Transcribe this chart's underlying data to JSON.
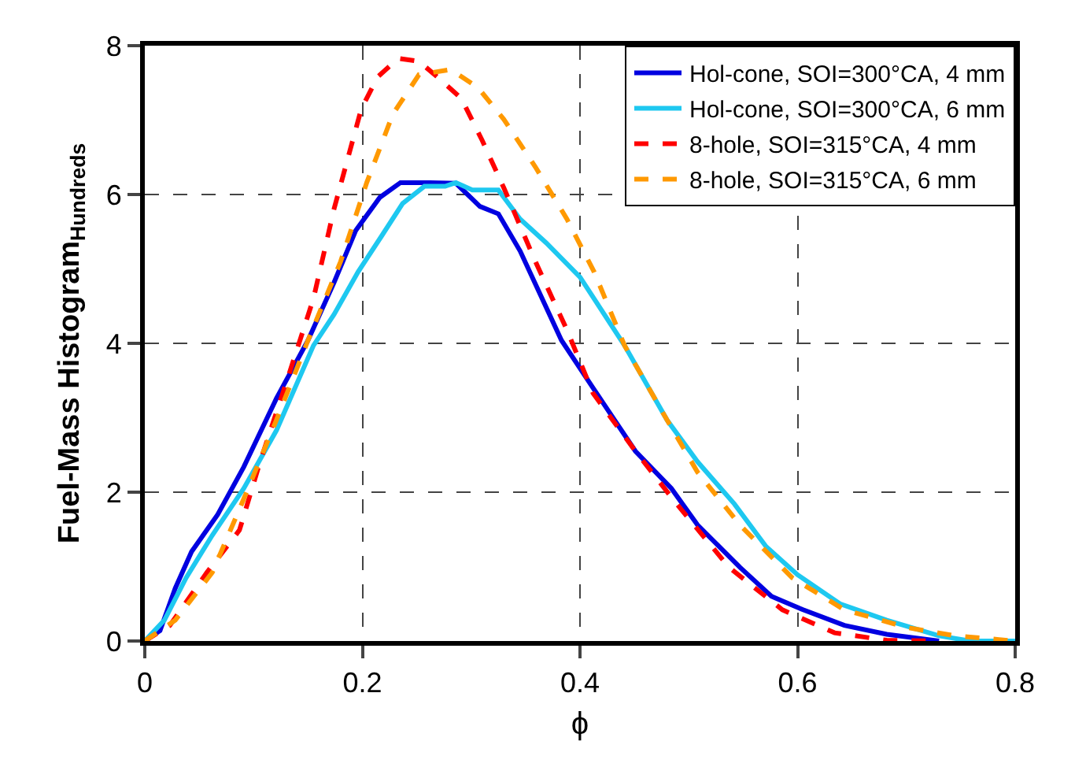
{
  "chart_data": {
    "type": "line",
    "xlabel": "ϕ",
    "ylabel": "Fuel-Mass Histogram$_{Hundreds}$",
    "xlim": [
      0,
      0.8
    ],
    "xticks": [
      0,
      0.2,
      0.4,
      0.6,
      0.8
    ],
    "ylim": [
      0,
      8
    ],
    "yticks": [
      0,
      2,
      4,
      6,
      8
    ],
    "grid": true,
    "legend": "top right",
    "marker": "none",
    "series": [
      {
        "name": "Hol-cone, SOI=300°CA, 4 mm",
        "color": "#0000e0",
        "line_style": "solid",
        "x": [
          0,
          0.014,
          0.028,
          0.043,
          0.067,
          0.091,
          0.121,
          0.15,
          0.174,
          0.194,
          0.216,
          0.235,
          0.262,
          0.286,
          0.308,
          0.325,
          0.345,
          0.383,
          0.412,
          0.451,
          0.484,
          0.508,
          0.547,
          0.576,
          0.605,
          0.643,
          0.682,
          0.73
        ],
        "values": [
          0,
          0.14,
          0.71,
          1.2,
          1.7,
          2.34,
          3.26,
          4.04,
          4.82,
          5.52,
          5.96,
          6.16,
          6.16,
          6.15,
          5.84,
          5.74,
          5.24,
          4.04,
          3.4,
          2.55,
          2.05,
          1.56,
          0.99,
          0.6,
          0.42,
          0.21,
          0.09,
          0
        ]
      },
      {
        "name": "Hol-cone, SOI=300°CA, 6 mm",
        "color": "#1ec8f0",
        "line_style": "solid",
        "x": [
          0,
          0.018,
          0.038,
          0.062,
          0.091,
          0.121,
          0.155,
          0.174,
          0.196,
          0.218,
          0.237,
          0.257,
          0.276,
          0.286,
          0.301,
          0.325,
          0.345,
          0.369,
          0.4,
          0.441,
          0.48,
          0.508,
          0.542,
          0.571,
          0.6,
          0.639,
          0.682,
          0.73,
          0.759,
          0.8
        ],
        "values": [
          0,
          0.28,
          0.85,
          1.42,
          2.05,
          2.83,
          3.97,
          4.39,
          4.96,
          5.45,
          5.88,
          6.11,
          6.11,
          6.16,
          6.06,
          6.06,
          5.67,
          5.35,
          4.89,
          3.97,
          2.97,
          2.41,
          1.84,
          1.27,
          0.89,
          0.5,
          0.28,
          0.07,
          0,
          0
        ]
      },
      {
        "name": "8-hole, SOI=315°CA, 4 mm",
        "color": "#ff0000",
        "line_style": "dashed",
        "x": [
          0,
          0.023,
          0.057,
          0.087,
          0.106,
          0.13,
          0.155,
          0.174,
          0.199,
          0.214,
          0.233,
          0.252,
          0.272,
          0.291,
          0.31,
          0.33,
          0.359,
          0.388,
          0.412,
          0.451,
          0.489,
          0.537,
          0.586,
          0.634,
          0.682,
          0.73
        ],
        "values": [
          0,
          0.21,
          0.92,
          1.49,
          2.41,
          3.47,
          4.6,
          5.81,
          7.15,
          7.58,
          7.83,
          7.79,
          7.54,
          7.29,
          6.73,
          6.09,
          5.1,
          4.18,
          3.33,
          2.55,
          1.84,
          0.99,
          0.42,
          0.11,
          0.01,
          0
        ]
      },
      {
        "name": "8-hole, SOI=315°CA, 6 mm",
        "color": "#ff9900",
        "line_style": "dashed",
        "x": [
          0,
          0.028,
          0.062,
          0.091,
          0.121,
          0.15,
          0.18,
          0.204,
          0.228,
          0.252,
          0.281,
          0.306,
          0.33,
          0.359,
          0.388,
          0.413,
          0.441,
          0.48,
          0.508,
          0.547,
          0.595,
          0.643,
          0.701,
          0.745,
          0.8
        ],
        "values": [
          0,
          0.28,
          0.92,
          1.91,
          2.97,
          4.04,
          5.1,
          6.16,
          7.08,
          7.61,
          7.68,
          7.44,
          7.01,
          6.37,
          5.67,
          4.96,
          3.97,
          2.97,
          2.27,
          1.56,
          0.85,
          0.42,
          0.18,
          0.07,
          0
        ]
      }
    ]
  }
}
